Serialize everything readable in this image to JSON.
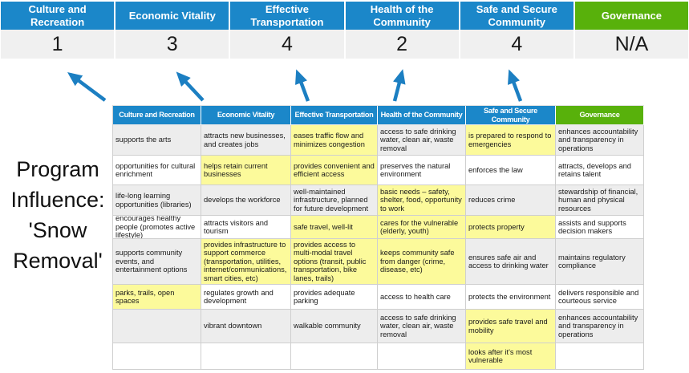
{
  "colors": {
    "header_blue": "#1B87C9",
    "governance_green": "#58B10B",
    "arrow_blue": "#1C7FC2",
    "highlight_yellow": "#FCFA9B",
    "score_row_gray": "#F0F0F0",
    "row_band_gray": "#EDEDED"
  },
  "title": {
    "lines": [
      "Program",
      "Influence:",
      "'Snow",
      "Removal'"
    ]
  },
  "score_band": {
    "columns": [
      {
        "label": "Culture and Recreation",
        "score": "1",
        "color": "blue"
      },
      {
        "label": "Economic Vitality",
        "score": "3",
        "color": "blue"
      },
      {
        "label": "Effective Transportation",
        "score": "4",
        "color": "blue"
      },
      {
        "label": "Health of the Community",
        "score": "2",
        "color": "blue"
      },
      {
        "label": "Safe and Secure Community",
        "score": "4",
        "color": "blue"
      },
      {
        "label": "Governance",
        "score": "N/A",
        "color": "green"
      }
    ]
  },
  "matrix": {
    "headers": [
      "Culture and Recreation",
      "Economic Vitality",
      "Effective Transportation",
      "Health of the Community",
      "Safe and Secure Community",
      "Governance"
    ],
    "rows": [
      [
        {
          "text": "supports the arts",
          "hl": false
        },
        {
          "text": "attracts new businesses, and creates jobs",
          "hl": false
        },
        {
          "text": "eases traffic flow and minimizes congestion",
          "hl": true
        },
        {
          "text": "access to safe drinking water, clean air, waste removal",
          "hl": false
        },
        {
          "text": "is prepared to respond to emergencies",
          "hl": true
        },
        {
          "text": "enhances accountability and transparency in operations",
          "hl": false
        }
      ],
      [
        {
          "text": "opportunities for cultural enrichment",
          "hl": false
        },
        {
          "text": "helps retain current businesses",
          "hl": true
        },
        {
          "text": "provides convenient and efficient access",
          "hl": true
        },
        {
          "text": "preserves the natural environment",
          "hl": false
        },
        {
          "text": "enforces the law",
          "hl": false
        },
        {
          "text": "attracts, develops and retains talent",
          "hl": false
        }
      ],
      [
        {
          "text": "life-long learning opportunities (libraries)",
          "hl": false
        },
        {
          "text": "develops the workforce",
          "hl": false
        },
        {
          "text": "well-maintained infrastructure, planned for future development",
          "hl": false
        },
        {
          "text": "basic needs – safety, shelter, food, opportunity to work",
          "hl": true
        },
        {
          "text": "reduces crime",
          "hl": false
        },
        {
          "text": "stewardship of financial, human and physical resources",
          "hl": false
        }
      ],
      [
        {
          "text": "encourages healthy people (promotes active lifestyle)",
          "hl": false
        },
        {
          "text": "attracts visitors and tourism",
          "hl": false
        },
        {
          "text": "safe travel, well-lit",
          "hl": true
        },
        {
          "text": "cares for the vulnerable (elderly, youth)",
          "hl": true
        },
        {
          "text": "protects property",
          "hl": true
        },
        {
          "text": "assists and supports decision makers",
          "hl": false
        }
      ],
      [
        {
          "text": "supports community events, and entertainment options",
          "hl": false
        },
        {
          "text": "provides infrastructure to support commerce (transportation, utilities, internet/communications, smart cities, etc)",
          "hl": true
        },
        {
          "text": "provides access to multi-modal travel options (transit, public transportation, bike lanes, trails)",
          "hl": true
        },
        {
          "text": "keeps community safe from danger (crime, disease, etc)",
          "hl": true
        },
        {
          "text": "ensures safe air and access to drinking water",
          "hl": false
        },
        {
          "text": "maintains regulatory compliance",
          "hl": false
        }
      ],
      [
        {
          "text": "parks, trails, open spaces",
          "hl": true
        },
        {
          "text": "regulates growth and development",
          "hl": false
        },
        {
          "text": "provides adequate parking",
          "hl": false
        },
        {
          "text": "access to health care",
          "hl": false
        },
        {
          "text": "protects the environment",
          "hl": false
        },
        {
          "text": "delivers responsible and courteous service",
          "hl": false
        }
      ],
      [
        {
          "text": "",
          "hl": false
        },
        {
          "text": "vibrant downtown",
          "hl": false
        },
        {
          "text": "walkable community",
          "hl": false
        },
        {
          "text": "access to safe drinking water, clean air, waste removal",
          "hl": false
        },
        {
          "text": "provides safe travel and mobility",
          "hl": true
        },
        {
          "text": "enhances accountability and transparency in operations",
          "hl": false
        }
      ],
      [
        {
          "text": "",
          "hl": false
        },
        {
          "text": "",
          "hl": false
        },
        {
          "text": "",
          "hl": false
        },
        {
          "text": "",
          "hl": false
        },
        {
          "text": "looks after it's most vulnerable",
          "hl": true
        },
        {
          "text": "",
          "hl": false
        }
      ]
    ]
  }
}
